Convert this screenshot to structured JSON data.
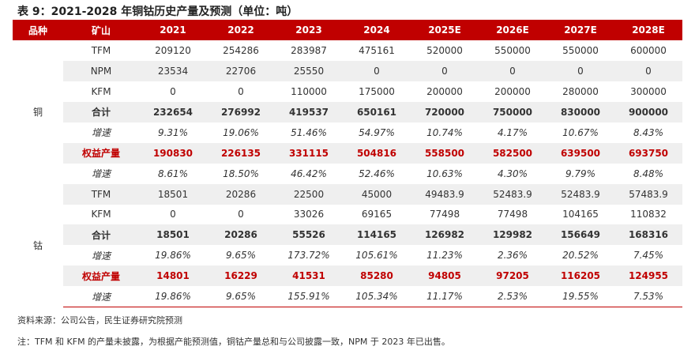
{
  "title": "表 9：2021-2028 年铜钴历史产量及预测（单位：吨）",
  "headers": [
    "品种",
    "矿山",
    "2021",
    "2022",
    "2023",
    "2024",
    "2025E",
    "2026E",
    "2027E",
    "2028E"
  ],
  "groups": {
    "copper": "铜",
    "cobalt": "钴"
  },
  "rows": [
    {
      "label": "TFM",
      "values": [
        "209120",
        "254286",
        "283987",
        "475161",
        "520000",
        "550000",
        "550000",
        "600000"
      ]
    },
    {
      "label": "NPM",
      "values": [
        "23534",
        "22706",
        "25550",
        "0",
        "0",
        "0",
        "0",
        "0"
      ]
    },
    {
      "label": "KFM",
      "values": [
        "0",
        "0",
        "110000",
        "175000",
        "200000",
        "200000",
        "280000",
        "300000"
      ]
    },
    {
      "label": "合计",
      "values": [
        "232654",
        "276992",
        "419537",
        "650161",
        "720000",
        "750000",
        "830000",
        "900000"
      ]
    },
    {
      "label": "增速",
      "values": [
        "9.31%",
        "19.06%",
        "51.46%",
        "54.97%",
        "10.74%",
        "4.17%",
        "10.67%",
        "8.43%"
      ]
    },
    {
      "label": "权益产量",
      "values": [
        "190830",
        "226135",
        "331115",
        "504816",
        "558500",
        "582500",
        "639500",
        "693750"
      ]
    },
    {
      "label": "增速",
      "values": [
        "8.61%",
        "18.50%",
        "46.42%",
        "52.46%",
        "10.63%",
        "4.30%",
        "9.79%",
        "8.48%"
      ]
    },
    {
      "label": "TFM",
      "values": [
        "18501",
        "20286",
        "22500",
        "45000",
        "49483.9",
        "52483.9",
        "52483.9",
        "57483.9"
      ]
    },
    {
      "label": "KFM",
      "values": [
        "0",
        "0",
        "33026",
        "69165",
        "77498",
        "77498",
        "104165",
        "110832"
      ]
    },
    {
      "label": "合计",
      "values": [
        "18501",
        "20286",
        "55526",
        "114165",
        "126982",
        "129982",
        "156649",
        "168316"
      ]
    },
    {
      "label": "增速",
      "values": [
        "19.86%",
        "9.65%",
        "173.72%",
        "105.61%",
        "11.23%",
        "2.36%",
        "20.52%",
        "7.45%"
      ]
    },
    {
      "label": "权益产量",
      "values": [
        "14801",
        "16229",
        "41531",
        "85280",
        "94805",
        "97205",
        "116205",
        "124955"
      ]
    },
    {
      "label": "增速",
      "values": [
        "19.86%",
        "9.65%",
        "155.91%",
        "105.34%",
        "11.17%",
        "2.53%",
        "19.55%",
        "7.53%"
      ]
    }
  ],
  "source": "资料来源：公司公告，民生证券研究院预测",
  "note": "注：TFM 和 KFM 的产量未披露，为根据产能预测值，铜钴产量总和与公司披露一致，NPM 于 2023 年已出售。",
  "colors": {
    "accent": "#c00000",
    "shade": "#efefef"
  }
}
